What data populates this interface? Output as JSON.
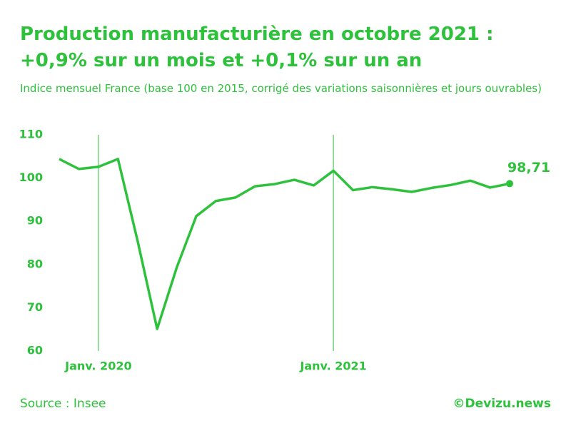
{
  "chart_data": {
    "type": "line",
    "title": "Production manufacturière en octobre 2021 : +0,9% sur un mois et +0,1% sur un an",
    "subtitle": "Indice mensuel France (base 100 en 2015, corrigé des variations saisonnières et jours ouvrables)",
    "categories": [
      null,
      null,
      "Janv. 2020",
      null,
      null,
      null,
      null,
      null,
      null,
      null,
      null,
      null,
      null,
      null,
      "Janv. 2021",
      null,
      null,
      null,
      null,
      null,
      null,
      null,
      null,
      null
    ],
    "series": [
      {
        "name": "Indice",
        "color": "#2ec13c",
        "values": [
          104.4,
          102.1,
          102.6,
          104.4,
          85.5,
          65.1,
          79.3,
          91.2,
          94.7,
          95.5,
          98.1,
          98.6,
          99.6,
          98.3,
          101.7,
          97.2,
          97.9,
          97.4,
          96.8,
          97.7,
          98.4,
          99.4,
          97.8,
          98.71
        ],
        "value_labels": [
          null,
          null,
          null,
          null,
          null,
          null,
          null,
          null,
          null,
          null,
          null,
          null,
          null,
          null,
          null,
          null,
          null,
          null,
          null,
          null,
          null,
          null,
          null,
          "98,71"
        ]
      }
    ],
    "ylim": [
      60,
      110
    ],
    "yticks": [
      60,
      70,
      80,
      90,
      100,
      110
    ],
    "source": "Source : Insee",
    "credit": "©Devizu.news"
  }
}
